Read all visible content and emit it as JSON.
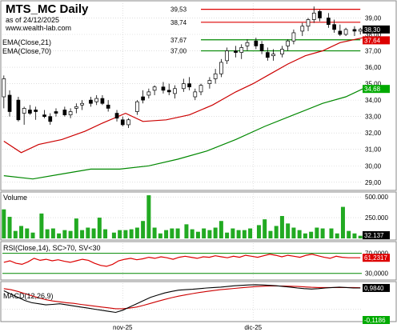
{
  "header": {
    "title": "MTS_MC Daily",
    "as_of": "as of 24/12/2025",
    "site": "www.wealth-lab.com"
  },
  "colors": {
    "up_candle": "#ffffff",
    "down_candle": "#000000",
    "ema21": "#cc0000",
    "ema70": "#008800",
    "volume_bar": "#22aa22",
    "rsi_line": "#dd0000",
    "rsi_bands": "#008800",
    "macd_line": "#000000",
    "macd_signal": "#cc0000",
    "resistance": "#dd0000",
    "support": "#008800",
    "grid": "#cccccc"
  },
  "chart_data": [
    {
      "type": "candlestick",
      "panel": "price",
      "legend": [
        "EMA(Close,21)",
        "EMA(Close,70)"
      ],
      "ylim": [
        28.6,
        39.9
      ],
      "yticks": [
        "29,00",
        "30,00",
        "31,00",
        "32,00",
        "33,00",
        "34,00",
        "35,00",
        "36,00",
        "37,00",
        "38,00",
        "39,00"
      ],
      "xticks": [
        {
          "label": "nov-25",
          "bar": 41
        },
        {
          "label": "dic-25",
          "bar": 86
        }
      ],
      "bar_count": 124,
      "candles": [
        {
          "o": 34.2,
          "h": 35.5,
          "l": 33.5,
          "c": 35.3
        },
        {
          "o": 34.3,
          "h": 34.6,
          "l": 33.0,
          "c": 33.3
        },
        {
          "o": 34.0,
          "h": 34.2,
          "l": 32.7,
          "c": 32.8
        },
        {
          "o": 33.2,
          "h": 33.6,
          "l": 32.5,
          "c": 33.5
        },
        {
          "o": 33.4,
          "h": 33.7,
          "l": 33.1,
          "c": 33.2
        },
        {
          "o": 33.4,
          "h": 33.6,
          "l": 32.8,
          "c": 33.3
        },
        {
          "o": 33.1,
          "h": 33.4,
          "l": 32.9,
          "c": 33.0
        },
        {
          "o": 33.0,
          "h": 33.2,
          "l": 32.5,
          "c": 32.7
        },
        {
          "o": 33.3,
          "h": 33.5,
          "l": 33.0,
          "c": 33.2
        },
        {
          "o": 33.4,
          "h": 33.6,
          "l": 33.0,
          "c": 33.1
        },
        {
          "o": 33.1,
          "h": 33.5,
          "l": 32.9,
          "c": 33.3
        },
        {
          "o": 33.5,
          "h": 33.8,
          "l": 33.2,
          "c": 33.6
        },
        {
          "o": 33.7,
          "h": 34.0,
          "l": 33.4,
          "c": 33.8
        },
        {
          "o": 34.0,
          "h": 34.2,
          "l": 33.6,
          "c": 33.8
        },
        {
          "o": 33.9,
          "h": 34.3,
          "l": 33.7,
          "c": 34.1
        },
        {
          "o": 34.1,
          "h": 34.3,
          "l": 33.7,
          "c": 33.8
        },
        {
          "o": 33.7,
          "h": 34.0,
          "l": 33.3,
          "c": 33.5
        },
        {
          "o": 33.2,
          "h": 33.4,
          "l": 32.7,
          "c": 32.9
        },
        {
          "o": 32.8,
          "h": 33.0,
          "l": 32.4,
          "c": 32.5
        },
        {
          "o": 32.5,
          "h": 32.9,
          "l": 32.3,
          "c": 32.8
        },
        {
          "o": 33.3,
          "h": 34.0,
          "l": 33.1,
          "c": 33.9
        },
        {
          "o": 34.2,
          "h": 34.6,
          "l": 33.8,
          "c": 34.0
        },
        {
          "o": 34.3,
          "h": 34.7,
          "l": 34.1,
          "c": 34.5
        },
        {
          "o": 34.6,
          "h": 34.9,
          "l": 34.3,
          "c": 34.8
        },
        {
          "o": 34.8,
          "h": 35.1,
          "l": 34.4,
          "c": 34.6
        },
        {
          "o": 34.6,
          "h": 35.0,
          "l": 34.3,
          "c": 34.5
        },
        {
          "o": 34.4,
          "h": 34.9,
          "l": 34.1,
          "c": 34.7
        },
        {
          "o": 34.7,
          "h": 35.3,
          "l": 34.5,
          "c": 35.0
        },
        {
          "o": 35.0,
          "h": 35.4,
          "l": 34.6,
          "c": 34.8
        },
        {
          "o": 34.2,
          "h": 34.7,
          "l": 34.0,
          "c": 34.5
        },
        {
          "o": 34.5,
          "h": 35.0,
          "l": 34.3,
          "c": 34.9
        },
        {
          "o": 35.0,
          "h": 35.4,
          "l": 34.7,
          "c": 35.2
        },
        {
          "o": 35.3,
          "h": 35.9,
          "l": 35.0,
          "c": 35.6
        },
        {
          "o": 35.6,
          "h": 36.5,
          "l": 35.4,
          "c": 36.3
        },
        {
          "o": 36.4,
          "h": 37.2,
          "l": 36.2,
          "c": 37.0
        },
        {
          "o": 37.0,
          "h": 37.3,
          "l": 36.6,
          "c": 36.9
        },
        {
          "o": 36.9,
          "h": 37.4,
          "l": 36.5,
          "c": 37.2
        },
        {
          "o": 37.3,
          "h": 37.7,
          "l": 37.0,
          "c": 37.5
        },
        {
          "o": 37.6,
          "h": 37.8,
          "l": 37.1,
          "c": 37.3
        },
        {
          "o": 37.4,
          "h": 37.6,
          "l": 36.8,
          "c": 37.0
        },
        {
          "o": 36.9,
          "h": 37.2,
          "l": 36.4,
          "c": 36.6
        },
        {
          "o": 36.7,
          "h": 37.1,
          "l": 36.4,
          "c": 36.8
        },
        {
          "o": 36.8,
          "h": 37.3,
          "l": 36.6,
          "c": 37.1
        },
        {
          "o": 37.3,
          "h": 37.7,
          "l": 37.0,
          "c": 37.6
        },
        {
          "o": 37.6,
          "h": 38.3,
          "l": 37.4,
          "c": 38.1
        },
        {
          "o": 38.2,
          "h": 38.7,
          "l": 37.9,
          "c": 38.5
        },
        {
          "o": 38.5,
          "h": 39.0,
          "l": 38.2,
          "c": 38.9
        },
        {
          "o": 38.9,
          "h": 39.7,
          "l": 38.7,
          "c": 39.3
        },
        {
          "o": 39.4,
          "h": 39.5,
          "l": 38.8,
          "c": 39.0
        },
        {
          "o": 39.0,
          "h": 39.3,
          "l": 38.4,
          "c": 38.6
        },
        {
          "o": 38.6,
          "h": 38.9,
          "l": 38.1,
          "c": 38.3
        },
        {
          "o": 38.2,
          "h": 38.6,
          "l": 37.9,
          "c": 38.0
        },
        {
          "o": 38.0,
          "h": 38.4,
          "l": 37.9,
          "c": 38.3
        },
        {
          "o": 38.3,
          "h": 38.5,
          "l": 37.9,
          "c": 38.2
        },
        {
          "o": 38.2,
          "h": 38.4,
          "l": 38.0,
          "c": 38.3
        }
      ],
      "ema21_points": [
        [
          0,
          31.5
        ],
        [
          6,
          30.8
        ],
        [
          12,
          31.3
        ],
        [
          20,
          31.6
        ],
        [
          28,
          32.1
        ],
        [
          34,
          32.6
        ],
        [
          42,
          33.2
        ],
        [
          48,
          32.7
        ],
        [
          56,
          32.8
        ],
        [
          64,
          33.1
        ],
        [
          72,
          33.7
        ],
        [
          80,
          34.5
        ],
        [
          86,
          35.0
        ],
        [
          92,
          35.6
        ],
        [
          98,
          36.2
        ],
        [
          104,
          36.7
        ],
        [
          110,
          37.0
        ],
        [
          116,
          37.5
        ],
        [
          124,
          37.8
        ]
      ],
      "ema70_points": [
        [
          0,
          29.4
        ],
        [
          10,
          29.2
        ],
        [
          20,
          29.5
        ],
        [
          30,
          29.8
        ],
        [
          40,
          29.8
        ],
        [
          50,
          30.0
        ],
        [
          60,
          30.4
        ],
        [
          70,
          30.9
        ],
        [
          80,
          31.6
        ],
        [
          90,
          32.4
        ],
        [
          100,
          33.1
        ],
        [
          110,
          33.8
        ],
        [
          118,
          34.2
        ],
        [
          124,
          34.7
        ]
      ],
      "support_resistance": [
        {
          "label": "39,53",
          "value": 39.53,
          "color_key": "resistance"
        },
        {
          "label": "38,74",
          "value": 38.74,
          "color_key": "resistance"
        },
        {
          "label": "37,67",
          "value": 37.67,
          "color_key": "support"
        },
        {
          "label": "37,00",
          "value": 37.0,
          "color_key": "support"
        }
      ],
      "right_labels": [
        {
          "text": "38,30",
          "value": 38.3,
          "bg": "#000000",
          "fg": "#ffffff"
        },
        {
          "text": "37,64",
          "value": 37.64,
          "bg": "#dd0000",
          "fg": "#ffffff"
        },
        {
          "text": "34,68",
          "value": 34.68,
          "bg": "#00aa00",
          "fg": "#ffffff"
        }
      ]
    },
    {
      "type": "bar",
      "panel": "volume",
      "label": "Volume",
      "ylim": [
        0,
        540000
      ],
      "yticks": [
        "500.000",
        "250.000"
      ],
      "last_label": "32.137",
      "values": [
        350,
        260,
        90,
        150,
        120,
        70,
        300,
        110,
        120,
        60,
        100,
        90,
        240,
        100,
        130,
        120,
        250,
        110,
        70,
        100,
        100,
        110,
        130,
        210,
        520,
        130,
        60,
        100,
        120,
        120,
        170,
        110,
        80,
        120,
        100,
        130,
        210,
        70,
        120,
        100,
        100,
        120,
        160,
        230,
        90,
        150,
        270,
        180,
        130,
        100,
        60,
        80,
        130,
        120,
        120,
        60,
        380,
        90,
        60,
        32
      ]
    },
    {
      "type": "line",
      "panel": "rsi",
      "label": "RSI(Close,14), SC>70, SV<30",
      "ylim": [
        20,
        90
      ],
      "yticks": [
        "70,0000",
        "30,0000"
      ],
      "last_label": "61,2317",
      "bands": [
        70,
        30
      ],
      "values": [
        52,
        55,
        50,
        48,
        53,
        60,
        56,
        58,
        55,
        57,
        54,
        52,
        55,
        58,
        56,
        50,
        46,
        44,
        48,
        55,
        58,
        60,
        57,
        59,
        62,
        60,
        63,
        61,
        58,
        62,
        64,
        62,
        60,
        63,
        62,
        65,
        63,
        61,
        64,
        62,
        66,
        64,
        62,
        65,
        68,
        66,
        63,
        66,
        64,
        62,
        66,
        68,
        65,
        62,
        60,
        64,
        62,
        61,
        61,
        61
      ]
    },
    {
      "type": "line",
      "panel": "macd",
      "label": "MACD(12,26,9)",
      "ylim": [
        -0.5,
        1.2
      ],
      "last_labels": [
        "0,9840",
        "-0,1186"
      ],
      "macd": [
        0.85,
        0.7,
        0.55,
        0.4,
        0.3,
        0.25,
        0.2,
        0.22,
        0.25,
        0.2,
        0.15,
        0.1,
        0.05,
        0.0,
        -0.05,
        -0.1,
        -0.15,
        -0.05,
        0.1,
        0.25,
        0.4,
        0.55,
        0.65,
        0.75,
        0.82,
        0.88,
        0.9,
        0.92,
        0.95,
        0.98,
        1.0,
        1.02,
        1.05,
        1.08,
        1.1,
        1.12,
        1.13,
        1.12,
        1.1,
        1.08,
        1.05,
        1.02,
        0.98,
        0.95,
        0.93,
        0.95,
        0.98,
        1.0,
        1.02,
        1.0,
        0.98,
        0.98
      ],
      "signal": [
        0.95,
        0.9,
        0.82,
        0.72,
        0.62,
        0.52,
        0.44,
        0.38,
        0.34,
        0.3,
        0.27,
        0.22,
        0.18,
        0.14,
        0.1,
        0.06,
        0.02,
        0.02,
        0.05,
        0.1,
        0.18,
        0.27,
        0.36,
        0.45,
        0.53,
        0.6,
        0.66,
        0.72,
        0.77,
        0.82,
        0.86,
        0.9,
        0.93,
        0.96,
        0.99,
        1.02,
        1.04,
        1.06,
        1.07,
        1.07,
        1.07,
        1.06,
        1.05,
        1.03,
        1.01,
        1.0,
        1.0,
        1.0,
        1.0,
        1.0,
        1.0,
        0.99
      ]
    }
  ]
}
